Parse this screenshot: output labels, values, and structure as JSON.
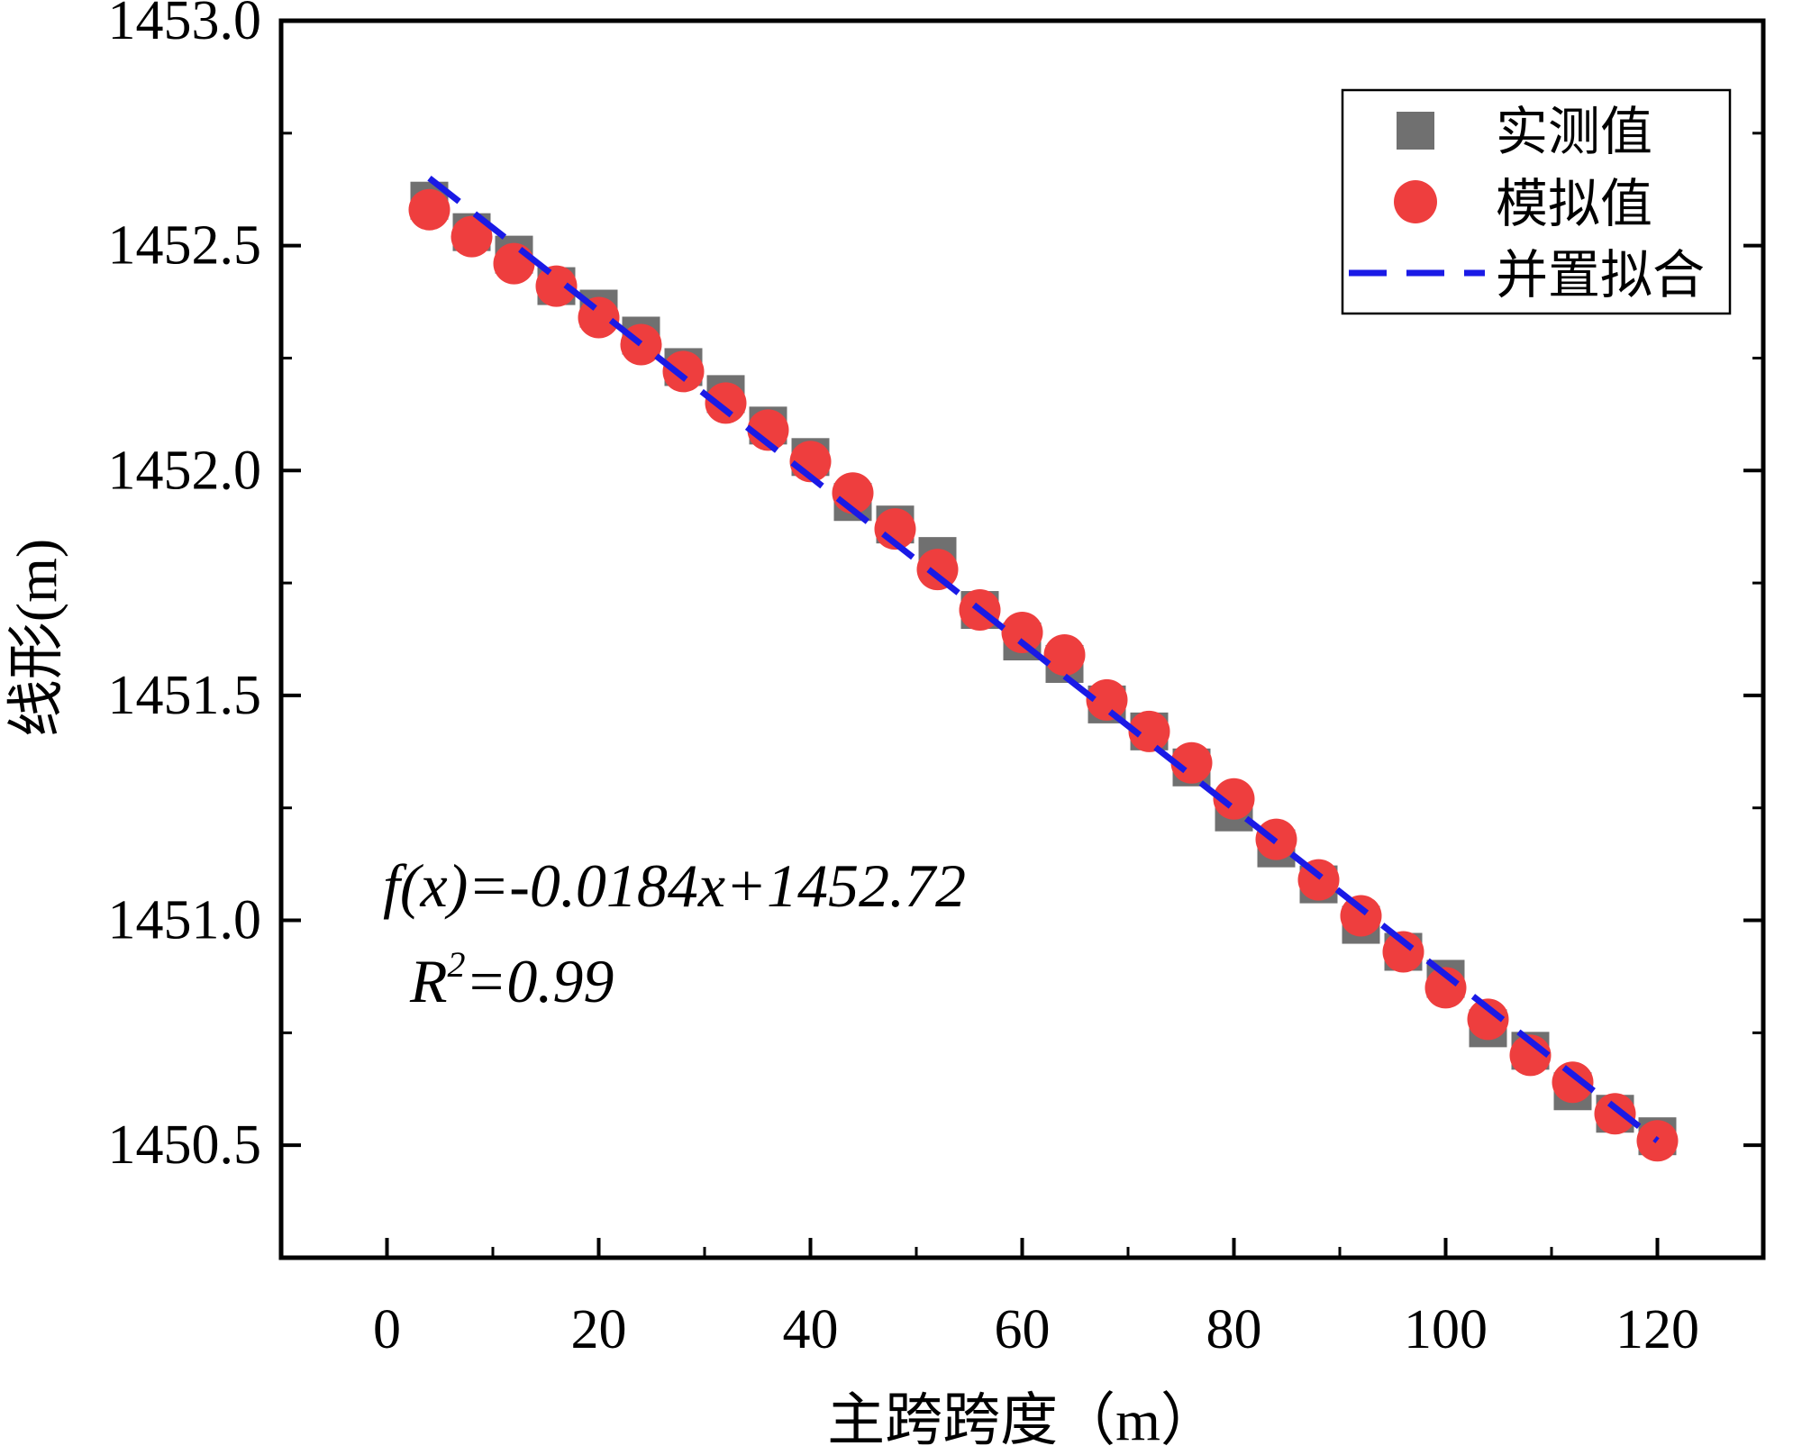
{
  "chart_data": {
    "type": "scatter",
    "title": "",
    "xlabel": "主跨跨度（m）",
    "ylabel": "线形(m)",
    "xlim": [
      -10,
      130
    ],
    "ylim": [
      1450.25,
      1453.0
    ],
    "xticks": [
      0,
      20,
      40,
      60,
      80,
      100,
      120
    ],
    "yticks": [
      1450.5,
      1451.0,
      1451.5,
      1452.0,
      1452.5,
      1453.0
    ],
    "xtick_labels": [
      "0",
      "20",
      "40",
      "60",
      "80",
      "100",
      "120"
    ],
    "ytick_labels": [
      "1450.5",
      "1451.0",
      "1451.5",
      "1452.0",
      "1452.5",
      "1453.0"
    ],
    "legend_position": "top-right",
    "series": [
      {
        "name": "实测值",
        "marker": "square",
        "color": "#707070",
        "x": [
          4,
          8,
          12,
          16,
          20,
          24,
          28,
          32,
          36,
          40,
          44,
          48,
          52,
          56,
          60,
          64,
          68,
          72,
          76,
          80,
          84,
          88,
          92,
          96,
          100,
          104,
          108,
          112,
          116,
          120
        ],
        "y": [
          1452.6,
          1452.53,
          1452.48,
          1452.41,
          1452.36,
          1452.3,
          1452.23,
          1452.17,
          1452.1,
          1452.03,
          1451.93,
          1451.88,
          1451.81,
          1451.69,
          1451.62,
          1451.57,
          1451.48,
          1451.42,
          1451.34,
          1451.24,
          1451.16,
          1451.08,
          1450.99,
          1450.93,
          1450.87,
          1450.76,
          1450.71,
          1450.62,
          1450.57,
          1450.52
        ]
      },
      {
        "name": "模拟值",
        "marker": "circle",
        "color": "#ee3e3e",
        "x": [
          4,
          8,
          12,
          16,
          20,
          24,
          28,
          32,
          36,
          40,
          44,
          48,
          52,
          56,
          60,
          64,
          68,
          72,
          76,
          80,
          84,
          88,
          92,
          96,
          100,
          104,
          108,
          112,
          116,
          120
        ],
        "y": [
          1452.58,
          1452.52,
          1452.46,
          1452.41,
          1452.34,
          1452.28,
          1452.22,
          1452.15,
          1452.09,
          1452.02,
          1451.95,
          1451.87,
          1451.78,
          1451.69,
          1451.64,
          1451.59,
          1451.49,
          1451.42,
          1451.35,
          1451.27,
          1451.18,
          1451.09,
          1451.01,
          1450.93,
          1450.85,
          1450.78,
          1450.7,
          1450.64,
          1450.57,
          1450.51
        ]
      },
      {
        "name": "并置拟合",
        "marker": "dashed-line",
        "color": "#1a1ae6",
        "x": [
          4,
          120
        ],
        "y": [
          1452.65,
          1450.51
        ]
      }
    ],
    "annotations": {
      "equation": "f(x)=-0.0184x+1452.72",
      "r_squared_prefix": "R",
      "r_squared_sup": "2",
      "r_squared_value": "=0.99"
    }
  }
}
